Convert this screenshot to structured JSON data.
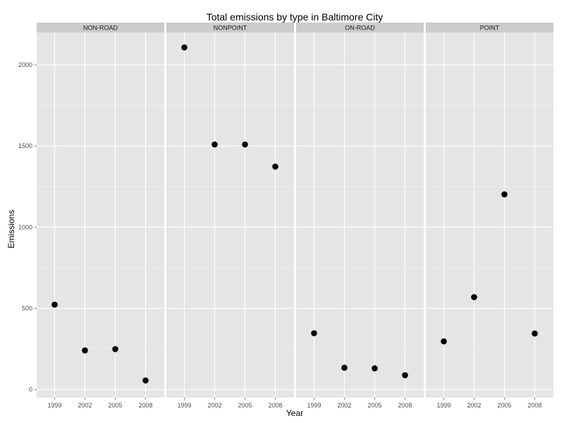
{
  "chart_data": {
    "type": "scatter",
    "title": "Total emissions by type in Baltimore City",
    "xlabel": "Year",
    "ylabel": "Emissions",
    "x": [
      "1999",
      "2002",
      "2005",
      "2008"
    ],
    "y_ticks": [
      0,
      500,
      1000,
      1500,
      2000
    ],
    "ylim": [
      -50,
      2200
    ],
    "grid": true,
    "facets": [
      {
        "label": "NON-ROAD",
        "values": [
          522.94,
          240.85,
          248.93,
          55.82
        ]
      },
      {
        "label": "NONPOINT",
        "values": [
          2107.62,
          1509.5,
          1509.5,
          1373.21
        ]
      },
      {
        "label": "ON-ROAD",
        "values": [
          346.82,
          134.31,
          130.43,
          88.28
        ]
      },
      {
        "label": "POINT",
        "values": [
          296.8,
          569.26,
          1202.49,
          344.98
        ]
      }
    ],
    "colors": {
      "panel_bg": "#e5e5e5",
      "strip_bg": "#cccccc",
      "grid": "#ffffff",
      "point": "#000000"
    }
  }
}
